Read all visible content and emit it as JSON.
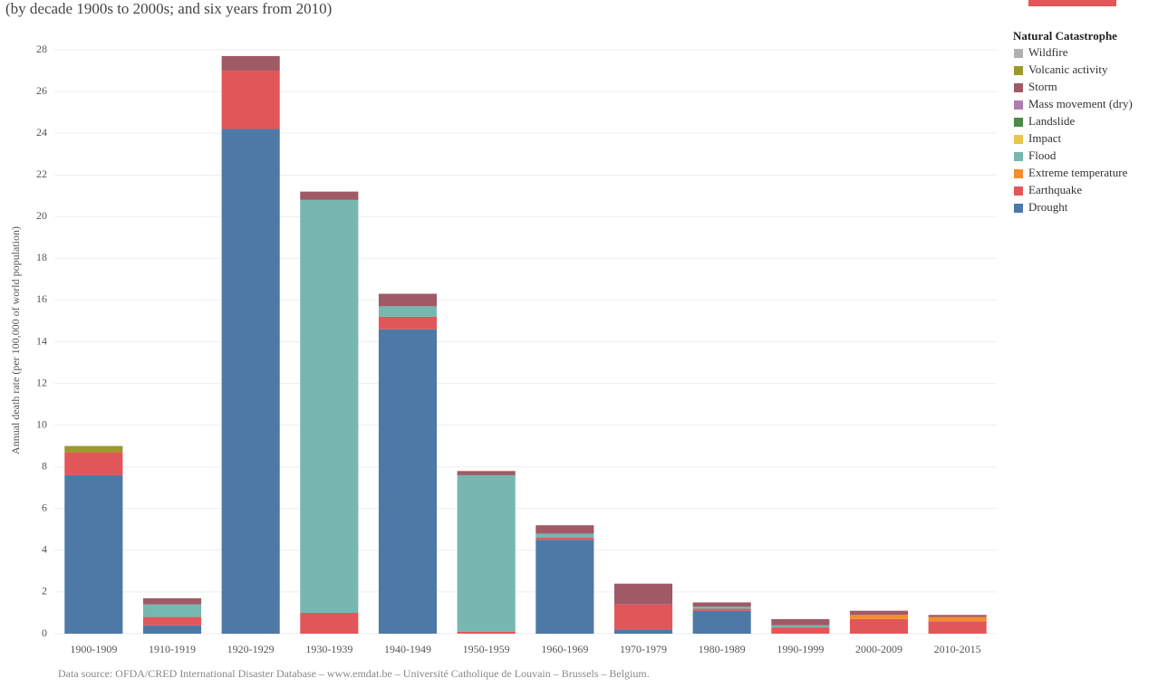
{
  "chart_data": {
    "type": "stacked-bar",
    "subtitle": "(by decade 1900s to 2000s; and six years from 2010)",
    "y_label": "Annual death rate (per 100,000 of world population)",
    "legend_title": "Natural Catastrophe",
    "source": "Data source: OFDA/CRED International Disaster Database – www.emdat.be – Université Catholique de Louvain – Brussels – Belgium.",
    "categories": [
      "1900-1909",
      "1910-1919",
      "1920-1929",
      "1930-1939",
      "1940-1949",
      "1950-1959",
      "1960-1969",
      "1970-1979",
      "1980-1989",
      "1990-1999",
      "2000-2009",
      "2010-2015"
    ],
    "ylim": [
      0,
      28
    ],
    "yticks": [
      0,
      2,
      4,
      6,
      8,
      10,
      12,
      14,
      16,
      18,
      20,
      22,
      24,
      26,
      28
    ],
    "grid": true,
    "series": [
      {
        "name": "Wildfire",
        "color": "#b0b0b0",
        "values": [
          0,
          0,
          0,
          0,
          0,
          0,
          0,
          0,
          0,
          0,
          0,
          0
        ]
      },
      {
        "name": "Volcanic activity",
        "color": "#9a9a2a",
        "values": [
          0.3,
          0,
          0,
          0,
          0,
          0,
          0,
          0,
          0,
          0,
          0,
          0
        ]
      },
      {
        "name": "Storm",
        "color": "#a05a66",
        "values": [
          0,
          0.3,
          0.7,
          0.4,
          0.6,
          0.2,
          0.4,
          1.0,
          0.2,
          0.3,
          0.2,
          0.1
        ]
      },
      {
        "name": "Mass movement (dry)",
        "color": "#b07cb0",
        "values": [
          0,
          0,
          0,
          0,
          0,
          0,
          0,
          0,
          0,
          0,
          0,
          0
        ]
      },
      {
        "name": "Landslide",
        "color": "#4a8a4a",
        "values": [
          0,
          0,
          0,
          0,
          0,
          0,
          0,
          0,
          0,
          0,
          0,
          0
        ]
      },
      {
        "name": "Impact",
        "color": "#e8c84a",
        "values": [
          0,
          0,
          0,
          0,
          0,
          0,
          0,
          0,
          0,
          0,
          0,
          0
        ]
      },
      {
        "name": "Flood",
        "color": "#76b7b2",
        "values": [
          0,
          0.6,
          0,
          19.8,
          0.5,
          7.5,
          0.2,
          0,
          0.1,
          0.1,
          0,
          0
        ]
      },
      {
        "name": "Extreme temperature",
        "color": "#f28e2b",
        "values": [
          0,
          0,
          0,
          0,
          0,
          0,
          0,
          0,
          0,
          0,
          0.2,
          0.2
        ]
      },
      {
        "name": "Earthquake",
        "color": "#e15759",
        "values": [
          1.1,
          0.4,
          2.8,
          1.0,
          0.6,
          0.1,
          0.1,
          1.2,
          0.1,
          0.3,
          0.7,
          0.6
        ]
      },
      {
        "name": "Drought",
        "color": "#4e79a7",
        "values": [
          7.6,
          0.4,
          24.2,
          0,
          14.6,
          0,
          4.5,
          0.2,
          1.1,
          0,
          0,
          0
        ]
      }
    ]
  }
}
